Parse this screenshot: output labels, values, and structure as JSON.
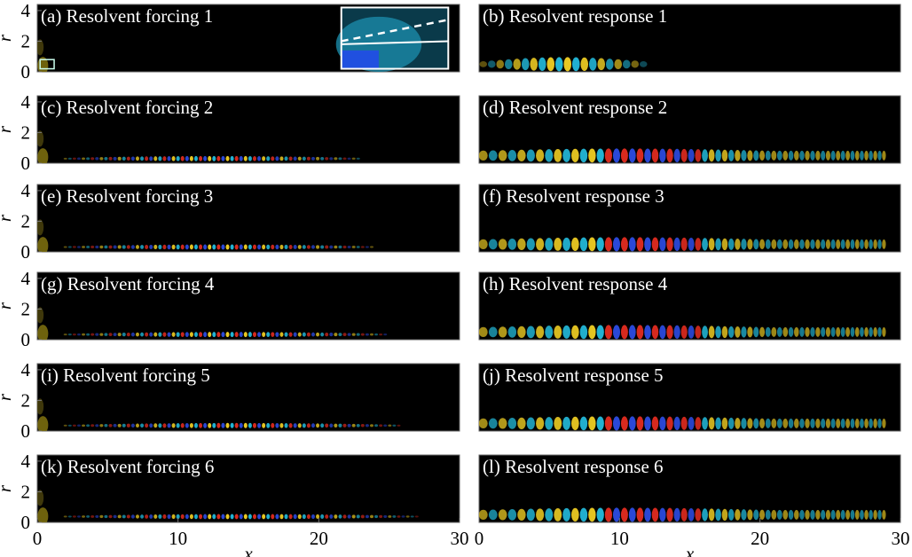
{
  "chart_data": [
    {
      "type": "field",
      "title": "(a) Resolvent forcing 1",
      "ylabel": "r",
      "xlim": [
        0,
        30
      ],
      "ylim": [
        0,
        4.4
      ],
      "yticks": [
        0,
        2,
        4
      ]
    },
    {
      "type": "field",
      "title": "(b) Resolvent response 1",
      "xlim": [
        0,
        30
      ],
      "ylim": [
        0,
        4.4
      ]
    },
    {
      "type": "field",
      "title": "(c) Resolvent forcing 2",
      "ylabel": "r",
      "xlim": [
        0,
        30
      ],
      "ylim": [
        0,
        4.4
      ],
      "yticks": [
        0,
        2,
        4
      ]
    },
    {
      "type": "field",
      "title": "(d) Resolvent response 2",
      "xlim": [
        0,
        30
      ],
      "ylim": [
        0,
        4.4
      ]
    },
    {
      "type": "field",
      "title": "(e) Resolvent forcing 3",
      "ylabel": "r",
      "xlim": [
        0,
        30
      ],
      "ylim": [
        0,
        4.4
      ],
      "yticks": [
        0,
        2,
        4
      ]
    },
    {
      "type": "field",
      "title": "(f) Resolvent response 3",
      "xlim": [
        0,
        30
      ],
      "ylim": [
        0,
        4.4
      ]
    },
    {
      "type": "field",
      "title": "(g) Resolvent forcing 4",
      "ylabel": "r",
      "xlim": [
        0,
        30
      ],
      "ylim": [
        0,
        4.4
      ],
      "yticks": [
        0,
        2,
        4
      ]
    },
    {
      "type": "field",
      "title": "(h) Resolvent response 4",
      "xlim": [
        0,
        30
      ],
      "ylim": [
        0,
        4.4
      ]
    },
    {
      "type": "field",
      "title": "(i) Resolvent forcing 5",
      "ylabel": "r",
      "xlim": [
        0,
        30
      ],
      "ylim": [
        0,
        4.4
      ],
      "yticks": [
        0,
        2,
        4
      ]
    },
    {
      "type": "field",
      "title": "(j) Resolvent response 5",
      "xlim": [
        0,
        30
      ],
      "ylim": [
        0,
        4.4
      ]
    },
    {
      "type": "field",
      "title": "(k) Resolvent forcing 6",
      "ylabel": "r",
      "xlabel": "x",
      "xlim": [
        0,
        30
      ],
      "ylim": [
        0,
        4.4
      ],
      "yticks": [
        0,
        2,
        4
      ],
      "xticks": [
        0,
        10,
        20,
        30
      ]
    },
    {
      "type": "field",
      "title": "(l) Resolvent response 6",
      "xlabel": "x",
      "xlim": [
        0,
        30
      ],
      "ylim": [
        0,
        4.4
      ],
      "xticks": [
        0,
        10,
        20,
        30
      ]
    }
  ]
}
